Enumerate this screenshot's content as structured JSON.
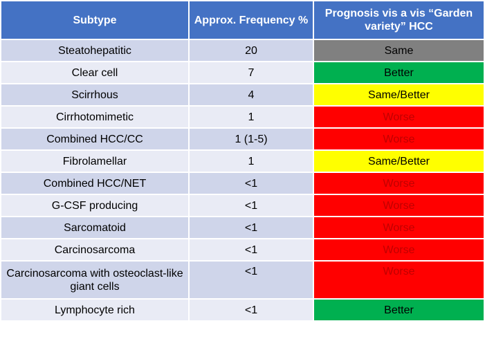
{
  "header": {
    "subtype": "Subtype",
    "frequency": "Approx. Frequency %",
    "prognosis": "Prognosis vis a vis “Garden variety” HCC"
  },
  "rows": [
    {
      "subtype": "Steatohepatitic",
      "frequency": "20",
      "prognosis": "Same"
    },
    {
      "subtype": "Clear cell",
      "frequency": "7",
      "prognosis": "Better"
    },
    {
      "subtype": "Scirrhous",
      "frequency": "4",
      "prognosis": "Same/Better"
    },
    {
      "subtype": "Cirrhotomimetic",
      "frequency": "1",
      "prognosis": "Worse"
    },
    {
      "subtype": "Combined HCC/CC",
      "frequency": "1 (1-5)",
      "prognosis": "Worse"
    },
    {
      "subtype": "Fibrolamellar",
      "frequency": "1",
      "prognosis": "Same/Better"
    },
    {
      "subtype": "Combined HCC/NET",
      "frequency": "<1",
      "prognosis": "Worse"
    },
    {
      "subtype": "G-CSF producing",
      "frequency": "<1",
      "prognosis": "Worse"
    },
    {
      "subtype": "Sarcomatoid",
      "frequency": "<1",
      "prognosis": "Worse"
    },
    {
      "subtype": "Carcinosarcoma",
      "frequency": "<1",
      "prognosis": "Worse"
    },
    {
      "subtype": "Carcinosarcoma with osteoclast-like giant cells",
      "frequency": "<1",
      "prognosis": "Worse"
    },
    {
      "subtype": "Lymphocyte rich",
      "frequency": "<1",
      "prognosis": "Better"
    }
  ],
  "colors": {
    "header_bg": "#4472c4",
    "row_dark": "#cfd5ea",
    "row_light": "#e9ebf5",
    "same": "#808080",
    "better": "#00b050",
    "same_better": "#ffff00",
    "worse": "#ff0000",
    "worse_text": "#c00000"
  }
}
